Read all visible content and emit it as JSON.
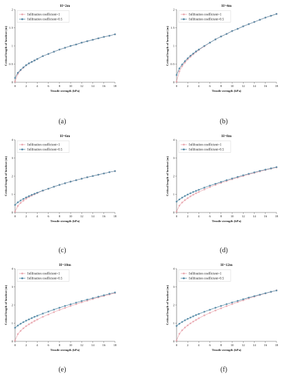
{
  "chart_data": [
    {
      "type": "line",
      "title": "H=2m",
      "caption": "(a)",
      "xlabel": "Tensile strength (kPa)",
      "ylabel": "Critical length of headcut (m)",
      "xlim": [
        0,
        18
      ],
      "ylim": [
        0,
        2
      ],
      "xticks": [
        "0",
        "2",
        "4",
        "6",
        "8",
        "10",
        "12",
        "14",
        "16",
        "18"
      ],
      "yticks": [
        "0",
        "0.5",
        "1",
        "1.5",
        "2"
      ],
      "grid": false,
      "legend_position": "top-left",
      "x": [
        0,
        0.5,
        1,
        1.5,
        2,
        2.5,
        3,
        3.5,
        4,
        5,
        6,
        7,
        8,
        9,
        10,
        11,
        12,
        13,
        14,
        15,
        16,
        17,
        18
      ],
      "series": [
        {
          "name": "Infiltration coefficient=1",
          "color": "#e9a6ae",
          "marker": "circle",
          "values": [
            0.02,
            0.23,
            0.33,
            0.4,
            0.47,
            0.52,
            0.56,
            0.6,
            0.64,
            0.72,
            0.78,
            0.84,
            0.9,
            0.95,
            1.0,
            1.04,
            1.09,
            1.13,
            1.17,
            1.21,
            1.25,
            1.28,
            1.32
          ]
        },
        {
          "name": "Infiltration coefficient=0.5",
          "color": "#4f86a3",
          "marker": "circle",
          "values": [
            0.12,
            0.26,
            0.34,
            0.41,
            0.47,
            0.52,
            0.56,
            0.6,
            0.64,
            0.72,
            0.78,
            0.84,
            0.9,
            0.95,
            1.0,
            1.04,
            1.09,
            1.13,
            1.17,
            1.21,
            1.25,
            1.28,
            1.32
          ]
        }
      ]
    },
    {
      "type": "line",
      "title": "H=4m",
      "caption": "(b)",
      "xlabel": "Tensile strength (kPa)",
      "ylabel": "Critical length of headcut (m)",
      "xlim": [
        0,
        18
      ],
      "ylim": [
        0,
        2
      ],
      "xticks": [
        "0",
        "2",
        "4",
        "6",
        "8",
        "10",
        "12",
        "14",
        "16",
        "18"
      ],
      "yticks": [
        "0",
        "0.5",
        "1",
        "1.5",
        "2"
      ],
      "grid": false,
      "legend_position": "top-left",
      "x": [
        0,
        0.5,
        1,
        1.5,
        2,
        2.5,
        3,
        3.5,
        4,
        5,
        6,
        7,
        8,
        9,
        10,
        11,
        12,
        13,
        14,
        15,
        16,
        17,
        18
      ],
      "series": [
        {
          "name": "Infiltration coefficient=1",
          "color": "#e9a6ae",
          "marker": "circle",
          "values": [
            0.02,
            0.3,
            0.44,
            0.54,
            0.63,
            0.7,
            0.77,
            0.83,
            0.89,
            0.99,
            1.09,
            1.18,
            1.26,
            1.33,
            1.41,
            1.47,
            1.54,
            1.6,
            1.66,
            1.72,
            1.78,
            1.83,
            1.88
          ]
        },
        {
          "name": "Infiltration coefficient=0.5",
          "color": "#4f86a3",
          "marker": "circle",
          "values": [
            0.2,
            0.38,
            0.49,
            0.58,
            0.66,
            0.73,
            0.79,
            0.85,
            0.9,
            1.0,
            1.09,
            1.18,
            1.26,
            1.33,
            1.41,
            1.47,
            1.54,
            1.6,
            1.66,
            1.72,
            1.78,
            1.83,
            1.88
          ]
        }
      ]
    },
    {
      "type": "line",
      "title": "H=6m",
      "caption": "(c)",
      "xlabel": "Tensile strength (kPa)",
      "ylabel": "Critical length of headcut (m)",
      "xlim": [
        0,
        18
      ],
      "ylim": [
        0,
        4
      ],
      "xticks": [
        "0",
        "2",
        "4",
        "6",
        "8",
        "10",
        "12",
        "14",
        "16",
        "18"
      ],
      "yticks": [
        "0",
        "1",
        "2",
        "3",
        "4"
      ],
      "grid": false,
      "legend_position": "top-left",
      "x": [
        0,
        0.5,
        1,
        1.5,
        2,
        2.5,
        3,
        3.5,
        4,
        5,
        6,
        7,
        8,
        9,
        10,
        11,
        12,
        13,
        14,
        15,
        16,
        17,
        18
      ],
      "series": [
        {
          "name": "Infiltration coefficient=1",
          "color": "#e9a6ae",
          "marker": "circle",
          "values": [
            0.05,
            0.36,
            0.53,
            0.65,
            0.76,
            0.85,
            0.93,
            1.0,
            1.07,
            1.2,
            1.31,
            1.42,
            1.52,
            1.61,
            1.7,
            1.78,
            1.86,
            1.94,
            2.01,
            2.08,
            2.15,
            2.22,
            2.28
          ]
        },
        {
          "name": "Infiltration coefficient=0.5",
          "color": "#4f86a3",
          "marker": "circle",
          "values": [
            0.42,
            0.56,
            0.66,
            0.75,
            0.83,
            0.9,
            0.97,
            1.03,
            1.09,
            1.21,
            1.31,
            1.42,
            1.52,
            1.61,
            1.7,
            1.78,
            1.86,
            1.94,
            2.01,
            2.08,
            2.15,
            2.22,
            2.28
          ]
        }
      ]
    },
    {
      "type": "line",
      "title": "H=8m",
      "caption": "(d)",
      "xlabel": "Tensile strength (kPa)",
      "ylabel": "Critical length of headcut (m)",
      "xlim": [
        0,
        18
      ],
      "ylim": [
        0,
        4
      ],
      "xticks": [
        "0",
        "2",
        "4",
        "6",
        "8",
        "10",
        "12",
        "14",
        "16",
        "18"
      ],
      "yticks": [
        "0",
        "1",
        "2",
        "3",
        "4"
      ],
      "grid": false,
      "legend_position": "top-left",
      "x": [
        0,
        0.5,
        1,
        1.5,
        2,
        2.5,
        3,
        3.5,
        4,
        5,
        6,
        7,
        8,
        9,
        10,
        11,
        12,
        13,
        14,
        15,
        16,
        17,
        18
      ],
      "series": [
        {
          "name": "Infiltration coefficient=1",
          "color": "#e9a6ae",
          "marker": "circle",
          "values": [
            0.05,
            0.38,
            0.55,
            0.68,
            0.79,
            0.89,
            0.98,
            1.06,
            1.13,
            1.27,
            1.4,
            1.52,
            1.63,
            1.73,
            1.83,
            1.92,
            2.01,
            2.1,
            2.18,
            2.26,
            2.34,
            2.41,
            2.48
          ]
        },
        {
          "name": "Infiltration coefficient=0.5",
          "color": "#4f86a3",
          "marker": "circle",
          "values": [
            0.6,
            0.72,
            0.82,
            0.91,
            0.99,
            1.06,
            1.13,
            1.19,
            1.25,
            1.37,
            1.48,
            1.58,
            1.68,
            1.78,
            1.87,
            1.96,
            2.05,
            2.13,
            2.21,
            2.29,
            2.36,
            2.43,
            2.5
          ]
        }
      ]
    },
    {
      "type": "line",
      "title": "H=10m",
      "caption": "(e)",
      "xlabel": "Tensile strength (kPa)",
      "ylabel": "Critical length of headcut (m)",
      "xlim": [
        0,
        18
      ],
      "ylim": [
        0,
        4
      ],
      "xticks": [
        "0",
        "2",
        "4",
        "6",
        "8",
        "10",
        "12",
        "14",
        "16",
        "18"
      ],
      "yticks": [
        "0",
        "1",
        "2",
        "3",
        "4"
      ],
      "grid": false,
      "legend_position": "top-left",
      "x": [
        0,
        0.5,
        1,
        1.5,
        2,
        2.5,
        3,
        3.5,
        4,
        5,
        6,
        7,
        8,
        9,
        10,
        11,
        12,
        13,
        14,
        15,
        16,
        17,
        18
      ],
      "series": [
        {
          "name": "Infiltration coefficient=1",
          "color": "#e9a6ae",
          "marker": "circle",
          "values": [
            0.05,
            0.4,
            0.58,
            0.72,
            0.84,
            0.94,
            1.03,
            1.12,
            1.2,
            1.35,
            1.48,
            1.61,
            1.73,
            1.84,
            1.95,
            2.05,
            2.15,
            2.24,
            2.33,
            2.42,
            2.5,
            2.58,
            2.66
          ]
        },
        {
          "name": "Infiltration coefficient=0.5",
          "color": "#4f86a3",
          "marker": "circle",
          "values": [
            0.75,
            0.87,
            0.97,
            1.06,
            1.14,
            1.21,
            1.28,
            1.35,
            1.41,
            1.53,
            1.64,
            1.75,
            1.85,
            1.95,
            2.04,
            2.13,
            2.22,
            2.3,
            2.38,
            2.46,
            2.54,
            2.62,
            2.69
          ]
        }
      ]
    },
    {
      "type": "line",
      "title": "H=12m",
      "caption": "(f)",
      "xlabel": "Tensile strength (kPa)",
      "ylabel": "Critical length of headcut (m)",
      "xlim": [
        0,
        18
      ],
      "ylim": [
        0,
        4
      ],
      "xticks": [
        "0",
        "2",
        "4",
        "6",
        "8",
        "10",
        "12",
        "14",
        "16",
        "18"
      ],
      "yticks": [
        "0",
        "1",
        "2",
        "3",
        "4"
      ],
      "grid": false,
      "legend_position": "top-left",
      "x": [
        0,
        0.5,
        1,
        1.5,
        2,
        2.5,
        3,
        3.5,
        4,
        5,
        6,
        7,
        8,
        9,
        10,
        11,
        12,
        13,
        14,
        15,
        16,
        17,
        18
      ],
      "series": [
        {
          "name": "Infiltration coefficient=1",
          "color": "#e9a6ae",
          "marker": "circle",
          "values": [
            0.05,
            0.42,
            0.61,
            0.76,
            0.88,
            0.99,
            1.09,
            1.18,
            1.27,
            1.43,
            1.57,
            1.7,
            1.82,
            1.94,
            2.05,
            2.16,
            2.26,
            2.36,
            2.46,
            2.55,
            2.64,
            2.72,
            2.81
          ]
        },
        {
          "name": "Infiltration coefficient=0.5",
          "color": "#4f86a3",
          "marker": "circle",
          "values": [
            0.85,
            0.97,
            1.07,
            1.16,
            1.24,
            1.31,
            1.38,
            1.45,
            1.51,
            1.63,
            1.74,
            1.85,
            1.95,
            2.05,
            2.14,
            2.23,
            2.32,
            2.41,
            2.49,
            2.57,
            2.65,
            2.73,
            2.8
          ]
        }
      ]
    }
  ]
}
